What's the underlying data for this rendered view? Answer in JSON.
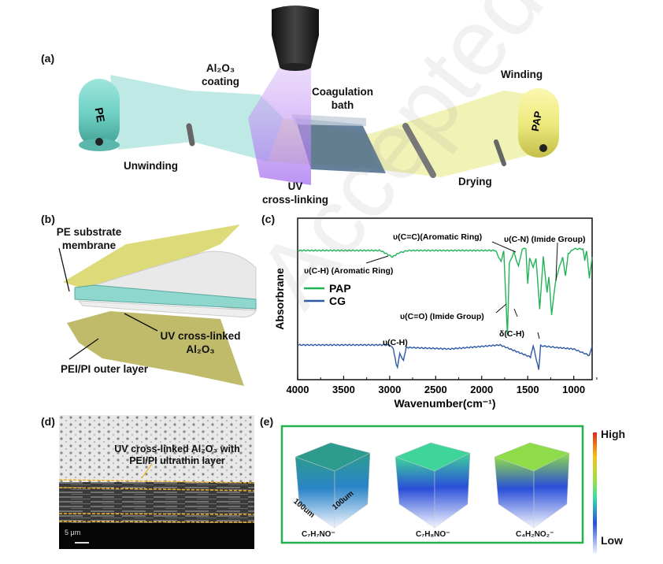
{
  "panels": {
    "a": {
      "label": "(a)",
      "roller_left": "PE",
      "roller_right": "PAP",
      "coating": "Al₂O₃\ncoating",
      "coating_l1": "Al₂O₃",
      "coating_l2": "coating",
      "coag_l1": "Coagulation",
      "coag_l2": "bath",
      "winding": "Winding",
      "unwinding": "Unwinding",
      "uv_l1": "UV",
      "uv_l2": "cross-linking",
      "drying": "Drying"
    },
    "b": {
      "label": "(b)",
      "pe_l1": "PE substrate",
      "pe_l2": "membrane",
      "uv_l1": "UV cross-linked",
      "uv_l2": "Al₂O₃",
      "outer": "PEI/PI outer layer"
    },
    "c": {
      "label": "(c)"
    },
    "d": {
      "label": "(d)",
      "caption_l1": "UV cross-linked Al₂O₃ with",
      "caption_l2": "PEI/PI ultrathin layer",
      "scale": "5 μm"
    },
    "e": {
      "label": "(e)",
      "dim1": "100um",
      "dim2": "100um",
      "cubes": [
        {
          "formula": "C₇H₇NO⁻"
        },
        {
          "formula": "C₇H₈NO⁻"
        },
        {
          "formula": "C₄H₂NO₂⁻"
        }
      ],
      "colorbar_high": "High",
      "colorbar_low": "Low",
      "frame_color": "#22b14c"
    }
  },
  "watermark": "Accepted",
  "chart_data": {
    "type": "line",
    "xlabel": "Wavenumber(cm⁻¹)",
    "ylabel": "Absorbrane",
    "xlim": [
      4000,
      800
    ],
    "ylim": [
      0,
      10
    ],
    "x_ticks": [
      "4000",
      "3500",
      "3000",
      "2500",
      "2000",
      "1500",
      "1000"
    ],
    "x_tick_values": [
      4000,
      3500,
      3000,
      2500,
      2000,
      1500,
      1000
    ],
    "y_ticks": [],
    "grid": false,
    "legend_position": "left",
    "series": [
      {
        "name": "PAP",
        "color": "#21b356",
        "points": [
          [
            4000,
            8.0
          ],
          [
            3100,
            8.0
          ],
          [
            2970,
            7.6
          ],
          [
            2900,
            7.85
          ],
          [
            2800,
            8.0
          ],
          [
            1850,
            8.0
          ],
          [
            1790,
            7.3
          ],
          [
            1760,
            8.0
          ],
          [
            1720,
            2.7
          ],
          [
            1700,
            7.2
          ],
          [
            1650,
            7.9
          ],
          [
            1600,
            7.0
          ],
          [
            1560,
            8.1
          ],
          [
            1520,
            8.1
          ],
          [
            1500,
            5.9
          ],
          [
            1480,
            7.5
          ],
          [
            1440,
            7.0
          ],
          [
            1410,
            7.5
          ],
          [
            1370,
            4.4
          ],
          [
            1330,
            7.6
          ],
          [
            1290,
            5.4
          ],
          [
            1270,
            6.4
          ],
          [
            1240,
            4.0
          ],
          [
            1200,
            6.0
          ],
          [
            1170,
            6.7
          ],
          [
            1120,
            7.6
          ],
          [
            1090,
            6.4
          ],
          [
            1060,
            7.8
          ],
          [
            1000,
            8.1
          ],
          [
            900,
            8.1
          ],
          [
            880,
            7.4
          ],
          [
            860,
            8.0
          ],
          [
            830,
            6.3
          ],
          [
            800,
            7.6
          ]
        ]
      },
      {
        "name": "CG",
        "color": "#2e5aa5",
        "points": [
          [
            4000,
            2.15
          ],
          [
            3000,
            2.15
          ],
          [
            2960,
            1.9
          ],
          [
            2930,
            1.0
          ],
          [
            2915,
            0.8
          ],
          [
            2890,
            1.6
          ],
          [
            2850,
            1.2
          ],
          [
            2820,
            2.0
          ],
          [
            2350,
            1.9
          ],
          [
            1800,
            2.15
          ],
          [
            1470,
            1.4
          ],
          [
            1440,
            2.1
          ],
          [
            1380,
            0.6
          ],
          [
            1360,
            2.1
          ],
          [
            1200,
            2.0
          ],
          [
            1000,
            1.9
          ],
          [
            830,
            1.5
          ],
          [
            800,
            2.1
          ]
        ]
      }
    ],
    "annotations": [
      {
        "text": "υ(C-H)  (Aromatic Ring)"
      },
      {
        "text": "υ(C=C)(Aromatic Ring)"
      },
      {
        "text": "υ(C-N) (Imide Group)"
      },
      {
        "text": "υ(C=O) (Imide Group)"
      },
      {
        "text": "δ(C-H)"
      },
      {
        "text": "υ(C-H)"
      }
    ]
  }
}
